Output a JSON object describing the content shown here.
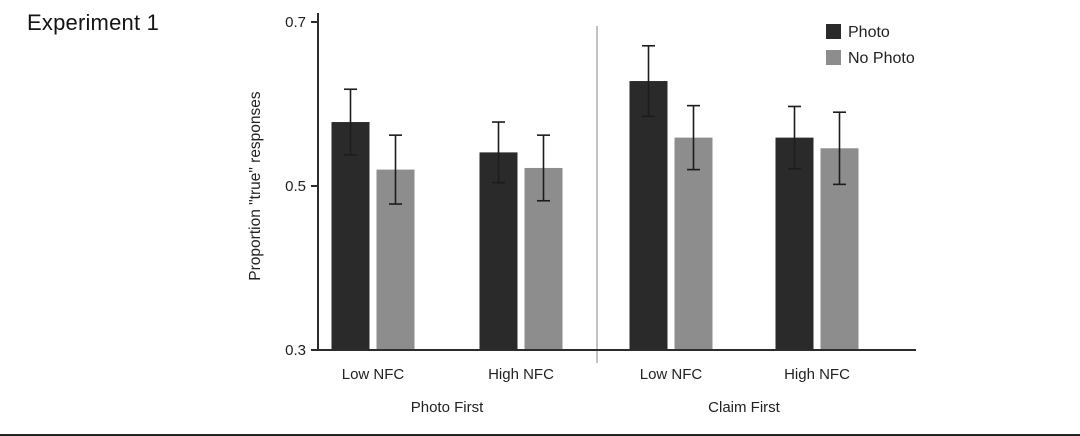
{
  "title": "Experiment 1",
  "chart_data": {
    "type": "bar",
    "title": "Experiment 1",
    "ylabel": "Proportion \"true\" responses",
    "ylim": [
      0.3,
      0.7
    ],
    "yticks": [
      0.7,
      0.5,
      0.3
    ],
    "legend_position": "top-right",
    "grid": false,
    "legend": [
      {
        "label": "Photo",
        "color": "#2a2a2a"
      },
      {
        "label": "No Photo",
        "color": "#8d8d8d"
      }
    ],
    "panels": [
      {
        "label": "Photo First",
        "categories": [
          "Low NFC",
          "High NFC"
        ],
        "series": [
          {
            "name": "Photo",
            "values": [
              0.578,
              0.541
            ],
            "errors": [
              0.04,
              0.037
            ]
          },
          {
            "name": "No Photo",
            "values": [
              0.52,
              0.522
            ],
            "errors": [
              0.042,
              0.04
            ]
          }
        ]
      },
      {
        "label": "Claim First",
        "categories": [
          "Low NFC",
          "High NFC"
        ],
        "series": [
          {
            "name": "Photo",
            "values": [
              0.628,
              0.559
            ],
            "errors": [
              0.043,
              0.038
            ]
          },
          {
            "name": "No Photo",
            "values": [
              0.559,
              0.546
            ],
            "errors": [
              0.039,
              0.044
            ]
          }
        ]
      }
    ],
    "colors": {
      "axis": "#2c2c2c",
      "error_bar": "#1c1c1c",
      "panel_divider": "#9b9b9b"
    }
  }
}
